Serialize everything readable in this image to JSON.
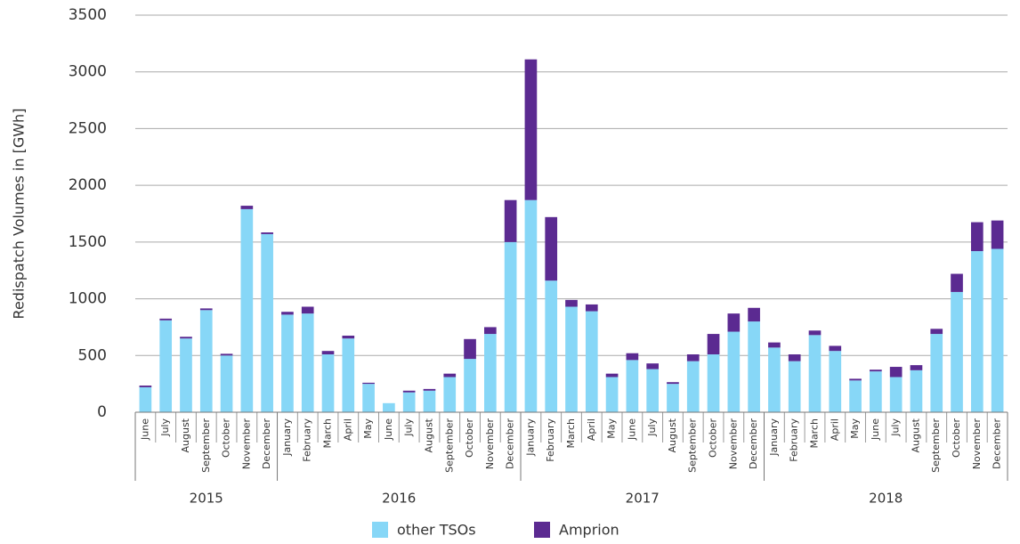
{
  "chart_data": {
    "type": "stacked-bar",
    "y_label": "Redispatch Volumes in [GWh]",
    "groups": [
      {
        "name": "2015",
        "categories": [
          "June",
          "July",
          "August",
          "September",
          "October",
          "November",
          "December"
        ]
      },
      {
        "name": "2016",
        "categories": [
          "January",
          "February",
          "March",
          "April",
          "May",
          "June",
          "July",
          "August",
          "September",
          "October",
          "November",
          "December"
        ]
      },
      {
        "name": "2017",
        "categories": [
          "January",
          "February",
          "March",
          "April",
          "May",
          "June",
          "July",
          "August",
          "September",
          "October",
          "November",
          "December"
        ]
      },
      {
        "name": "2018",
        "categories": [
          "January",
          "February",
          "March",
          "April",
          "May",
          "June",
          "July",
          "August",
          "September",
          "October",
          "November",
          "December"
        ]
      }
    ],
    "series": [
      {
        "name": "other TSOs",
        "color": "#87d7f7",
        "values": [
          220,
          810,
          650,
          900,
          500,
          1790,
          1570,
          860,
          870,
          510,
          650,
          250,
          80,
          175,
          190,
          310,
          470,
          690,
          1500,
          1870,
          1160,
          930,
          890,
          310,
          460,
          380,
          250,
          450,
          510,
          710,
          800,
          570,
          450,
          680,
          540,
          280,
          360,
          310,
          370,
          690,
          1060,
          1420,
          1440
        ]
      },
      {
        "name": "Amprion",
        "color": "#5b2a91",
        "values": [
          15,
          15,
          15,
          15,
          15,
          30,
          15,
          25,
          60,
          30,
          25,
          10,
          0,
          15,
          15,
          30,
          175,
          60,
          370,
          1240,
          560,
          60,
          60,
          30,
          60,
          50,
          15,
          60,
          180,
          160,
          120,
          45,
          60,
          40,
          45,
          15,
          15,
          90,
          45,
          45,
          160,
          255,
          250
        ]
      }
    ],
    "ylim": [
      0,
      3500
    ],
    "yticks": [
      0,
      500,
      1000,
      1500,
      2000,
      2500,
      3000,
      3500
    ],
    "grid": true
  }
}
